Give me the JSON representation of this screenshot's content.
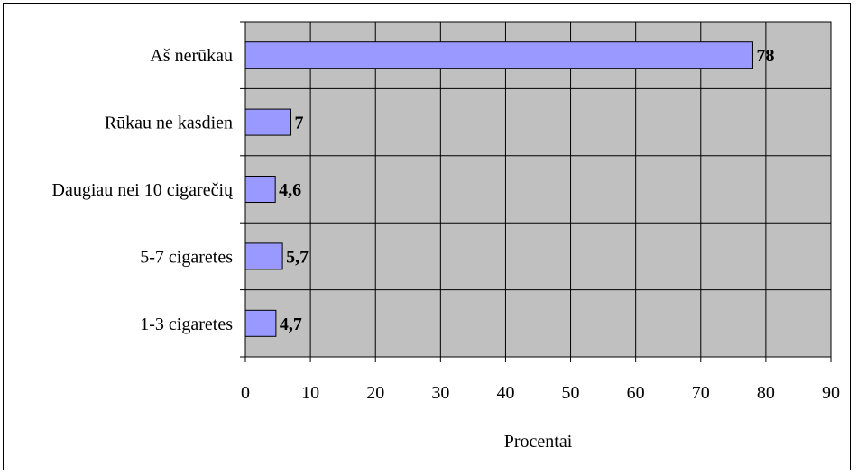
{
  "chart_data": {
    "type": "bar",
    "orientation": "horizontal",
    "categories": [
      "Aš nerūkau",
      "Rūkau ne kasdien",
      "Daugiau nei 10 cigarečių",
      "5-7 cigaretes",
      "1-3 cigaretes"
    ],
    "values": [
      78,
      7,
      4.6,
      5.7,
      4.7
    ],
    "value_labels": [
      "78",
      "7",
      "4,6",
      "5,7",
      "4,7"
    ],
    "title": "",
    "xlabel": "Procentai",
    "ylabel": "",
    "xlim": [
      0,
      90
    ],
    "xticks": [
      "0",
      "10",
      "20",
      "30",
      "40",
      "50",
      "60",
      "70",
      "80",
      "90"
    ],
    "grid": true,
    "legend": "none",
    "colors": {
      "bar_fill": "#9999FF",
      "bar_stroke": "#000000",
      "plot_bg": "#C0C0C0",
      "grid": "#000000"
    }
  }
}
